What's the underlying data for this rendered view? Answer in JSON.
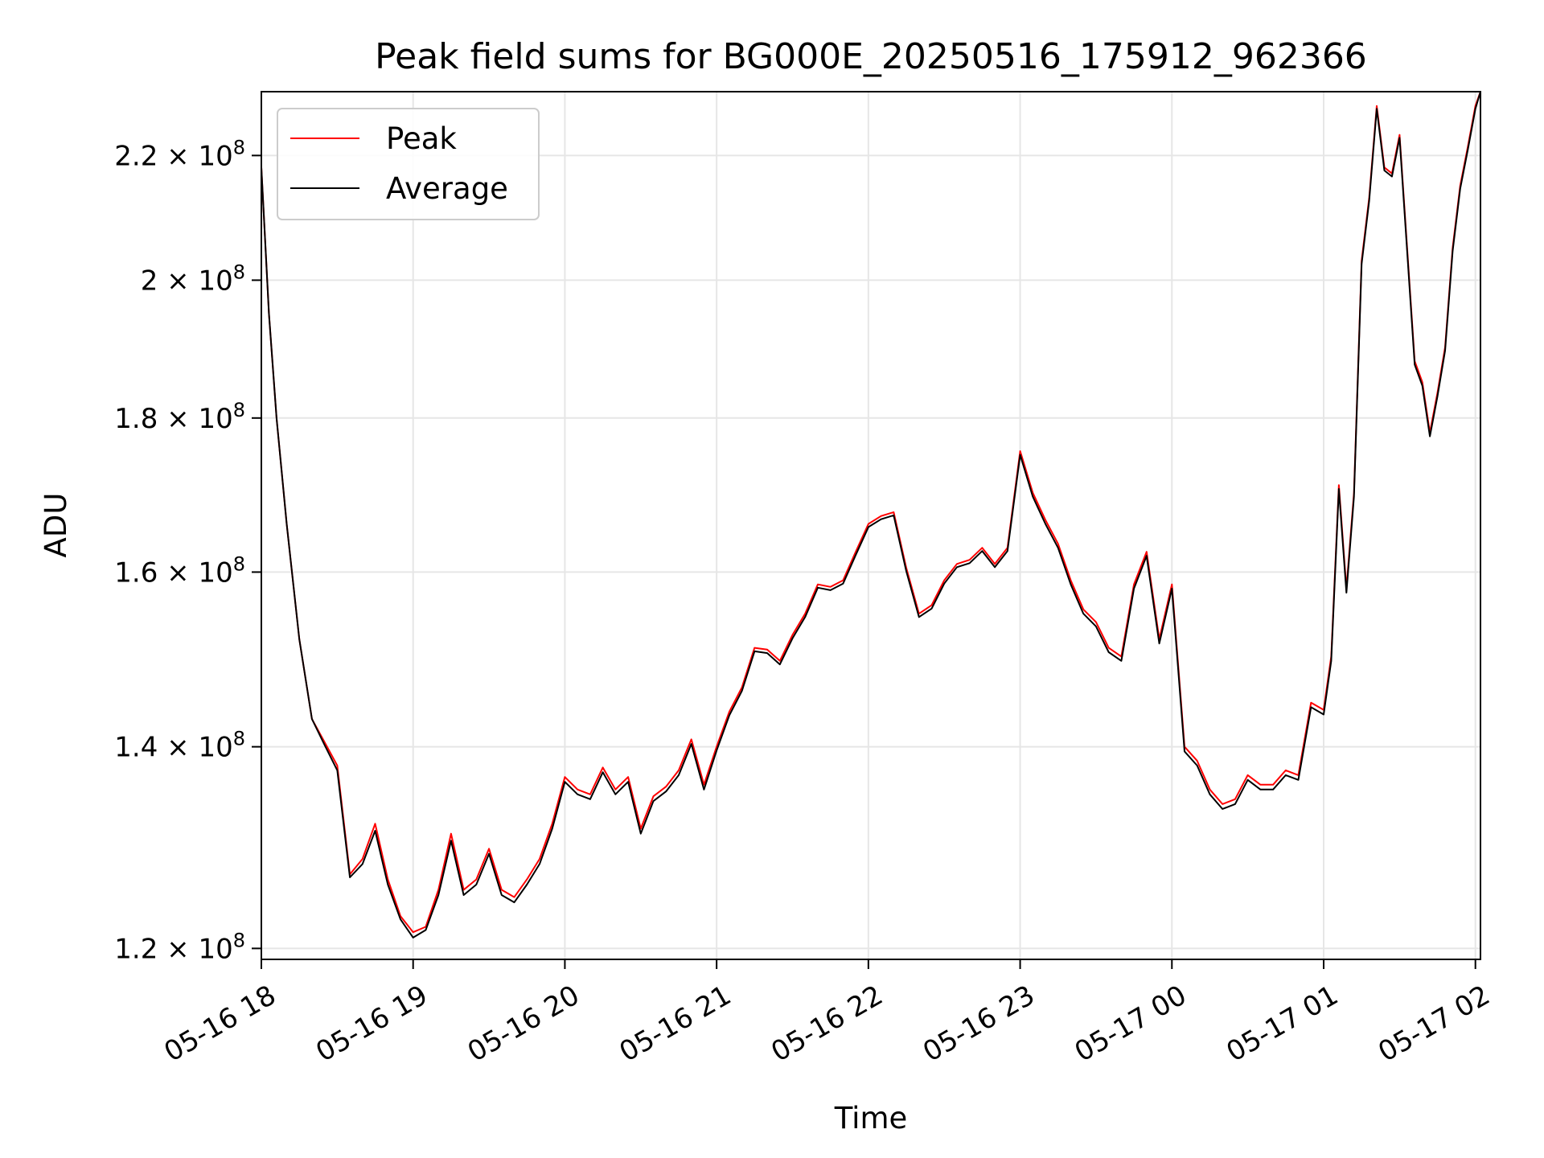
{
  "chart_data": {
    "type": "line",
    "title": "Peak field sums for BG000E_20250516_175912_962366",
    "xlabel": "Time",
    "ylabel": "ADU",
    "yscale": "log",
    "grid": true,
    "legend_position": "top-left",
    "xlim": [
      "2025-05-16T18:00",
      "2025-05-17T02:02"
    ],
    "ylim": [
      119000000,
      231000000
    ],
    "x_ticks": [
      {
        "value": "2025-05-16T18:00",
        "label": "05-16 18"
      },
      {
        "value": "2025-05-16T19:00",
        "label": "05-16 19"
      },
      {
        "value": "2025-05-16T20:00",
        "label": "05-16 20"
      },
      {
        "value": "2025-05-16T21:00",
        "label": "05-16 21"
      },
      {
        "value": "2025-05-16T22:00",
        "label": "05-16 22"
      },
      {
        "value": "2025-05-16T23:00",
        "label": "05-16 23"
      },
      {
        "value": "2025-05-17T00:00",
        "label": "05-17 00"
      },
      {
        "value": "2025-05-17T01:00",
        "label": "05-17 01"
      },
      {
        "value": "2025-05-17T02:00",
        "label": "05-17 02"
      }
    ],
    "y_ticks": [
      {
        "value": 120000000,
        "mantissa": "1.2",
        "exponent": "8"
      },
      {
        "value": 140000000,
        "mantissa": "1.4",
        "exponent": "8"
      },
      {
        "value": 160000000,
        "mantissa": "1.6",
        "exponent": "8"
      },
      {
        "value": 180000000,
        "mantissa": "1.8",
        "exponent": "8"
      },
      {
        "value": 200000000,
        "mantissa": "2",
        "exponent": "8"
      },
      {
        "value": 220000000,
        "mantissa": "2.2",
        "exponent": "8"
      }
    ],
    "x": [
      "2025-05-16T18:00",
      "2025-05-16T18:03",
      "2025-05-16T18:06",
      "2025-05-16T18:10",
      "2025-05-16T18:15",
      "2025-05-16T18:20",
      "2025-05-16T18:25",
      "2025-05-16T18:30",
      "2025-05-16T18:35",
      "2025-05-16T18:40",
      "2025-05-16T18:45",
      "2025-05-16T18:50",
      "2025-05-16T18:55",
      "2025-05-16T19:00",
      "2025-05-16T19:05",
      "2025-05-16T19:10",
      "2025-05-16T19:15",
      "2025-05-16T19:20",
      "2025-05-16T19:25",
      "2025-05-16T19:30",
      "2025-05-16T19:35",
      "2025-05-16T19:40",
      "2025-05-16T19:45",
      "2025-05-16T19:50",
      "2025-05-16T19:55",
      "2025-05-16T20:00",
      "2025-05-16T20:05",
      "2025-05-16T20:10",
      "2025-05-16T20:15",
      "2025-05-16T20:20",
      "2025-05-16T20:25",
      "2025-05-16T20:30",
      "2025-05-16T20:35",
      "2025-05-16T20:40",
      "2025-05-16T20:45",
      "2025-05-16T20:50",
      "2025-05-16T20:55",
      "2025-05-16T21:00",
      "2025-05-16T21:05",
      "2025-05-16T21:10",
      "2025-05-16T21:15",
      "2025-05-16T21:20",
      "2025-05-16T21:25",
      "2025-05-16T21:30",
      "2025-05-16T21:35",
      "2025-05-16T21:40",
      "2025-05-16T21:45",
      "2025-05-16T21:50",
      "2025-05-16T21:55",
      "2025-05-16T22:00",
      "2025-05-16T22:05",
      "2025-05-16T22:10",
      "2025-05-16T22:15",
      "2025-05-16T22:20",
      "2025-05-16T22:25",
      "2025-05-16T22:30",
      "2025-05-16T22:35",
      "2025-05-16T22:40",
      "2025-05-16T22:45",
      "2025-05-16T22:50",
      "2025-05-16T22:55",
      "2025-05-16T23:00",
      "2025-05-16T23:05",
      "2025-05-16T23:10",
      "2025-05-16T23:15",
      "2025-05-16T23:20",
      "2025-05-16T23:25",
      "2025-05-16T23:30",
      "2025-05-16T23:35",
      "2025-05-16T23:40",
      "2025-05-16T23:45",
      "2025-05-16T23:50",
      "2025-05-16T23:55",
      "2025-05-17T00:00",
      "2025-05-17T00:05",
      "2025-05-17T00:10",
      "2025-05-17T00:15",
      "2025-05-17T00:20",
      "2025-05-17T00:25",
      "2025-05-17T00:30",
      "2025-05-17T00:35",
      "2025-05-17T00:40",
      "2025-05-17T00:45",
      "2025-05-17T00:50",
      "2025-05-17T00:55",
      "2025-05-17T01:00",
      "2025-05-17T01:03",
      "2025-05-17T01:06",
      "2025-05-17T01:09",
      "2025-05-17T01:12",
      "2025-05-17T01:15",
      "2025-05-17T01:18",
      "2025-05-17T01:21",
      "2025-05-17T01:24",
      "2025-05-17T01:27",
      "2025-05-17T01:30",
      "2025-05-17T01:33",
      "2025-05-17T01:36",
      "2025-05-17T01:39",
      "2025-05-17T01:42",
      "2025-05-17T01:45",
      "2025-05-17T01:48",
      "2025-05-17T01:51",
      "2025-05-17T01:54",
      "2025-05-17T01:57",
      "2025-05-17T02:00",
      "2025-05-17T02:02"
    ],
    "series": [
      {
        "name": "Peak",
        "color": "#ff0000",
        "values": [
          218000000,
          195000000,
          180000000,
          166000000,
          152000000,
          143000000,
          140500000,
          138000000,
          127000000,
          128500000,
          132000000,
          126500000,
          123000000,
          121500000,
          122000000,
          125500000,
          131000000,
          125500000,
          126500000,
          129500000,
          125500000,
          124800000,
          126500000,
          128500000,
          132000000,
          136800000,
          135500000,
          135000000,
          137800000,
          135500000,
          136800000,
          131500000,
          134800000,
          135800000,
          137500000,
          140800000,
          136000000,
          140000000,
          143800000,
          146500000,
          151000000,
          150800000,
          149500000,
          152500000,
          155000000,
          158500000,
          158200000,
          159000000,
          162500000,
          166000000,
          167000000,
          167500000,
          160500000,
          155000000,
          156000000,
          159000000,
          161000000,
          161500000,
          163000000,
          161000000,
          163000000,
          175500000,
          170000000,
          166500000,
          163500000,
          159000000,
          155500000,
          154000000,
          151000000,
          150000000,
          158500000,
          162500000,
          152000000,
          158500000,
          140000000,
          138500000,
          135500000,
          134000000,
          134500000,
          137000000,
          136000000,
          136000000,
          137500000,
          137000000,
          144800000,
          144000000,
          150000000,
          171000000,
          158000000,
          170000000,
          203000000,
          213000000,
          228500000,
          218000000,
          217000000,
          223500000,
          205000000,
          188000000,
          185000000,
          178000000,
          183500000,
          190000000,
          205000000,
          215000000,
          221500000,
          228500000,
          231000000
        ]
      },
      {
        "name": "Average",
        "color": "#000000",
        "values": [
          218000000,
          195000000,
          180000000,
          166000000,
          152000000,
          143000000,
          140200000,
          137500000,
          126700000,
          128000000,
          131300000,
          126000000,
          122700000,
          121000000,
          121700000,
          125000000,
          130300000,
          125000000,
          126000000,
          129000000,
          125000000,
          124300000,
          126000000,
          128000000,
          131500000,
          136300000,
          135000000,
          134500000,
          137300000,
          135000000,
          136300000,
          131000000,
          134300000,
          135300000,
          137000000,
          140300000,
          135500000,
          139600000,
          143400000,
          146100000,
          150600000,
          150400000,
          149100000,
          152100000,
          154600000,
          158100000,
          157800000,
          158600000,
          162100000,
          165600000,
          166600000,
          167100000,
          160100000,
          154600000,
          155600000,
          158600000,
          160600000,
          161100000,
          162600000,
          160600000,
          162600000,
          175000000,
          169500000,
          166000000,
          163000000,
          158500000,
          155000000,
          153500000,
          150500000,
          149500000,
          158000000,
          162000000,
          151500000,
          158000000,
          139500000,
          138000000,
          135000000,
          133500000,
          134000000,
          136500000,
          135500000,
          135500000,
          137000000,
          136500000,
          144300000,
          143500000,
          149500000,
          170500000,
          157500000,
          169500000,
          202500000,
          212500000,
          228000000,
          217500000,
          216500000,
          223000000,
          204500000,
          187500000,
          184500000,
          177500000,
          183000000,
          189500000,
          204500000,
          214500000,
          221000000,
          228000000,
          231000000
        ]
      }
    ]
  }
}
